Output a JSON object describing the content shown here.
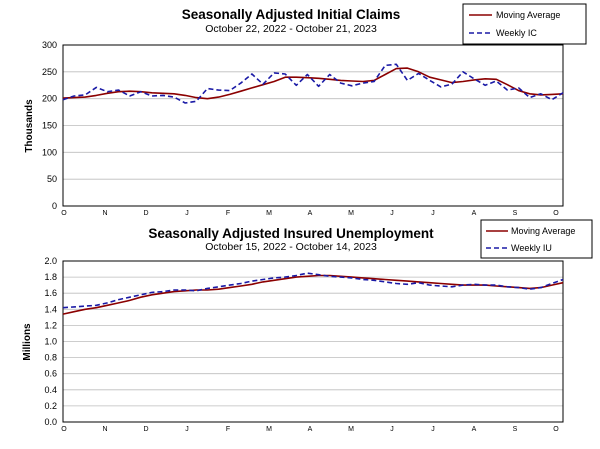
{
  "chart_data": [
    {
      "type": "line",
      "title": "Seasonally Adjusted Initial Claims",
      "subtitle": "October 22, 2022 - October 21, 2023",
      "ylabel": "Thousands",
      "ylim": [
        0,
        300
      ],
      "y_ticks": [
        0,
        50,
        100,
        150,
        200,
        250,
        300
      ],
      "x_ticks": [
        "O",
        "N",
        "D",
        "J",
        "F",
        "M",
        "A",
        "M",
        "J",
        "J",
        "A",
        "S",
        "O"
      ],
      "grid": "horizontal",
      "legend_position": "top-right",
      "series": [
        {
          "name": "Moving Average",
          "color": "#8b0000",
          "style": "solid",
          "values": [
            201,
            202,
            203,
            206,
            210,
            213,
            214,
            213,
            211,
            210,
            209,
            206,
            202,
            200,
            203,
            208,
            214,
            220,
            226,
            232,
            240,
            240,
            239,
            238,
            236,
            234,
            233,
            232,
            234,
            245,
            256,
            257,
            250,
            240,
            235,
            230,
            232,
            235,
            237,
            236,
            226,
            215,
            209,
            207,
            208,
            209
          ]
        },
        {
          "name": "Weekly IC",
          "color": "#1a1aa6",
          "style": "dashed",
          "values": [
            198,
            205,
            207,
            221,
            213,
            216,
            205,
            213,
            205,
            206,
            203,
            192,
            195,
            219,
            216,
            215,
            229,
            246,
            227,
            248,
            246,
            225,
            245,
            223,
            245,
            229,
            224,
            229,
            232,
            262,
            264,
            234,
            247,
            234,
            222,
            227,
            250,
            237,
            225,
            233,
            216,
            220,
            202,
            209,
            198,
            211
          ]
        }
      ]
    },
    {
      "type": "line",
      "title": "Seasonally Adjusted Insured Unemployment",
      "subtitle": "October 15, 2022 - October 14, 2023",
      "ylabel": "Millions",
      "ylim": [
        0,
        2.0
      ],
      "y_ticks": [
        "0.0",
        "0.2",
        "0.4",
        "0.6",
        "0.8",
        "1.0",
        "1.2",
        "1.4",
        "1.6",
        "1.8",
        "2.0"
      ],
      "x_ticks": [
        "O",
        "N",
        "D",
        "J",
        "F",
        "M",
        "A",
        "M",
        "J",
        "J",
        "A",
        "S",
        "O"
      ],
      "grid": "horizontal",
      "legend_position": "top-right",
      "series": [
        {
          "name": "Moving Average",
          "color": "#8b0000",
          "style": "solid",
          "values": [
            1.34,
            1.37,
            1.4,
            1.42,
            1.45,
            1.48,
            1.51,
            1.55,
            1.58,
            1.6,
            1.62,
            1.63,
            1.64,
            1.64,
            1.65,
            1.67,
            1.69,
            1.71,
            1.74,
            1.76,
            1.78,
            1.8,
            1.81,
            1.82,
            1.82,
            1.81,
            1.8,
            1.79,
            1.78,
            1.77,
            1.76,
            1.75,
            1.74,
            1.73,
            1.72,
            1.71,
            1.7,
            1.7,
            1.7,
            1.69,
            1.68,
            1.67,
            1.66,
            1.67,
            1.7,
            1.73
          ]
        },
        {
          "name": "Weekly IU",
          "color": "#1a1aa6",
          "style": "dashed",
          "values": [
            1.42,
            1.43,
            1.44,
            1.45,
            1.48,
            1.52,
            1.55,
            1.58,
            1.61,
            1.62,
            1.64,
            1.64,
            1.63,
            1.66,
            1.68,
            1.7,
            1.72,
            1.75,
            1.77,
            1.79,
            1.8,
            1.82,
            1.85,
            1.83,
            1.81,
            1.8,
            1.79,
            1.77,
            1.76,
            1.74,
            1.72,
            1.71,
            1.73,
            1.7,
            1.69,
            1.68,
            1.7,
            1.71,
            1.7,
            1.7,
            1.68,
            1.67,
            1.65,
            1.67,
            1.72,
            1.77
          ]
        }
      ]
    }
  ]
}
